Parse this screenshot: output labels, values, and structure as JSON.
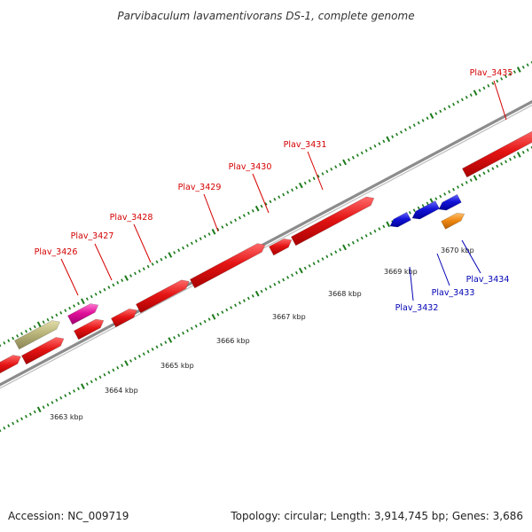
{
  "title": "Parvibaculum lavamentivorans DS-1, complete genome",
  "footer": {
    "accession": "Accession: NC_009719",
    "summary": "Topology: circular; Length: 3,914,745 bp; Genes: 3,686"
  },
  "colors": {
    "background": "#ffffff",
    "backbone": "#8c8c8c",
    "tick": "#1a7a1a",
    "label_red": "#d40000",
    "label_blue": "#0000b4",
    "gene_red": "#e41414",
    "gene_pink": "#e0109a",
    "gene_olive": "#b9b47a",
    "gene_blue": "#1414d8",
    "gene_orange": "#f08a14"
  },
  "scale_labels": [
    "3663 kbp",
    "3664 kbp",
    "3665 kbp",
    "3666 kbp",
    "3667 kbp",
    "3668 kbp",
    "3669 kbp",
    "3670 kbp"
  ],
  "gene_labels": [
    {
      "id": "plav-3426",
      "text": "Plav_3426",
      "color": "red"
    },
    {
      "id": "plav-3427",
      "text": "Plav_3427",
      "color": "red"
    },
    {
      "id": "plav-3428",
      "text": "Plav_3428",
      "color": "red"
    },
    {
      "id": "plav-3429",
      "text": "Plav_3429",
      "color": "red"
    },
    {
      "id": "plav-3430",
      "text": "Plav_3430",
      "color": "red"
    },
    {
      "id": "plav-3431",
      "text": "Plav_3431",
      "color": "red"
    },
    {
      "id": "plav-3435",
      "text": "Plav_3435",
      "color": "red"
    },
    {
      "id": "plav-3432",
      "text": "Plav_3432",
      "color": "blue"
    },
    {
      "id": "plav-3433",
      "text": "Plav_3433",
      "color": "blue"
    },
    {
      "id": "plav-3434",
      "text": "Plav_3434",
      "color": "blue"
    }
  ]
}
